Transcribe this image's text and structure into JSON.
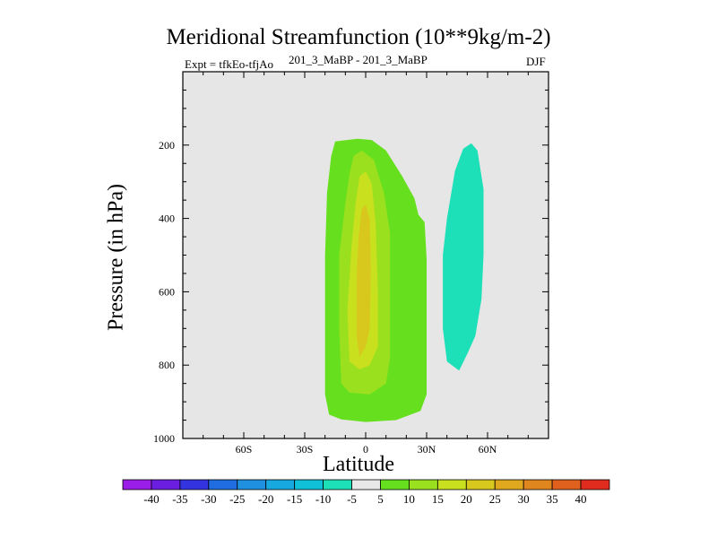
{
  "title": "Meridional Streamfunction (10**9kg/m-2)",
  "subtitle_left": "Expt = tfkEo-tfjAo",
  "subtitle_center": "201_3_MaBP - 201_3_MaBP",
  "subtitle_right": "DJF",
  "chart_data": {
    "type": "contour",
    "title": "Meridional Streamfunction (10**9kg/m-2)",
    "xlabel": "Latitude",
    "ylabel": "Pressure (in hPa)",
    "x_ticks": [
      {
        "value": -60,
        "label": "60S"
      },
      {
        "value": -30,
        "label": "30S"
      },
      {
        "value": 0,
        "label": "0"
      },
      {
        "value": 30,
        "label": "30N"
      },
      {
        "value": 60,
        "label": "60N"
      }
    ],
    "y_ticks": [
      {
        "value": 200,
        "label": "200"
      },
      {
        "value": 400,
        "label": "400"
      },
      {
        "value": 600,
        "label": "600"
      },
      {
        "value": 800,
        "label": "800"
      },
      {
        "value": 1000,
        "label": "1000"
      }
    ],
    "xlim": [
      -90,
      90
    ],
    "ylim": [
      1000,
      0
    ],
    "y_reversed": true,
    "background_color": "#e6e6e6",
    "colorbar": {
      "labels": [
        "-40",
        "-35",
        "-30",
        "-25",
        "-20",
        "-15",
        "-10",
        "-5",
        "5",
        "10",
        "15",
        "20",
        "25",
        "30",
        "35",
        "40"
      ],
      "colors": [
        "#9b1ee8",
        "#6c1ee0",
        "#3333e0",
        "#1f6de0",
        "#1f8fe0",
        "#17a8e0",
        "#0fc0d8",
        "#1ee0b8",
        "#e8e8e8",
        "#66e01e",
        "#9ae01e",
        "#c8e01e",
        "#d8c81e",
        "#e0a81e",
        "#e0861e",
        "#e0601e",
        "#e02c1e"
      ]
    },
    "contours": [
      {
        "level": 5,
        "color": "#66e01e",
        "points": [
          [
            -15,
            190
          ],
          [
            -4,
            183
          ],
          [
            3,
            186
          ],
          [
            10,
            215
          ],
          [
            18,
            285
          ],
          [
            24,
            345
          ],
          [
            26,
            390
          ],
          [
            29,
            410
          ],
          [
            30,
            510
          ],
          [
            30,
            700
          ],
          [
            30,
            880
          ],
          [
            27,
            925
          ],
          [
            15,
            950
          ],
          [
            0,
            955
          ],
          [
            -12,
            948
          ],
          [
            -18,
            935
          ],
          [
            -20,
            880
          ],
          [
            -20,
            700
          ],
          [
            -20,
            500
          ],
          [
            -19,
            330
          ],
          [
            -17,
            230
          ]
        ]
      },
      {
        "level": 10,
        "color": "#9ae01e",
        "points": [
          [
            -6,
            230
          ],
          [
            -2,
            215
          ],
          [
            4,
            240
          ],
          [
            9,
            330
          ],
          [
            12,
            440
          ],
          [
            12,
            600
          ],
          [
            12,
            780
          ],
          [
            10,
            850
          ],
          [
            2,
            880
          ],
          [
            -8,
            875
          ],
          [
            -12,
            850
          ],
          [
            -13,
            700
          ],
          [
            -13,
            500
          ],
          [
            -10,
            360
          ],
          [
            -8,
            280
          ]
        ]
      },
      {
        "level": 15,
        "color": "#c8e01e",
        "points": [
          [
            -3,
            285
          ],
          [
            0,
            272
          ],
          [
            3,
            305
          ],
          [
            5,
            420
          ],
          [
            6,
            600
          ],
          [
            6,
            750
          ],
          [
            2,
            800
          ],
          [
            -3,
            812
          ],
          [
            -8,
            790
          ],
          [
            -9,
            650
          ],
          [
            -7,
            480
          ],
          [
            -5,
            360
          ]
        ]
      },
      {
        "level": 20,
        "color": "#d8c81e",
        "points": [
          [
            -2,
            375
          ],
          [
            0,
            362
          ],
          [
            2,
            400
          ],
          [
            2.5,
            540
          ],
          [
            2,
            700
          ],
          [
            0,
            750
          ],
          [
            -3,
            778
          ],
          [
            -4.5,
            720
          ],
          [
            -4.5,
            560
          ],
          [
            -3.5,
            450
          ]
        ]
      },
      {
        "level": -5,
        "color": "#1ee0b8",
        "points": [
          [
            52,
            195
          ],
          [
            55,
            215
          ],
          [
            58,
            320
          ],
          [
            58,
            500
          ],
          [
            57,
            620
          ],
          [
            54,
            720
          ],
          [
            50,
            770
          ],
          [
            46,
            815
          ],
          [
            40,
            790
          ],
          [
            38,
            700
          ],
          [
            38,
            500
          ],
          [
            40,
            400
          ],
          [
            44,
            270
          ],
          [
            48,
            210
          ]
        ]
      }
    ]
  }
}
